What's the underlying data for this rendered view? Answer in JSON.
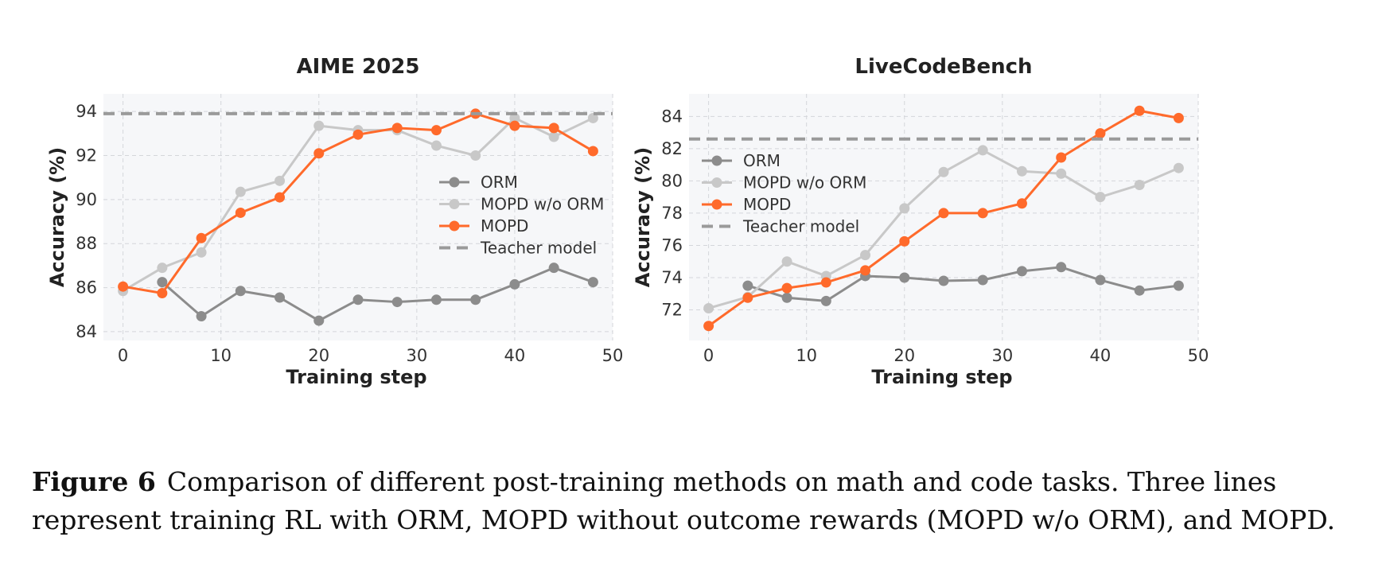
{
  "colors": {
    "ORM": "#8c8c8c",
    "MOPD w/o ORM": "#c8c8c8",
    "MOPD": "#ff6a2b",
    "teacher": "#9a9a9a",
    "plot_bg": "#f6f7f9",
    "grid": "#d4d6da"
  },
  "chart_data": [
    {
      "type": "line",
      "title": "AIME 2025",
      "xlabel": "Training step",
      "ylabel": "Accuracy (%)",
      "xlim": [
        -2,
        50
      ],
      "ylim": [
        83.6,
        94.8
      ],
      "xticks": [
        0,
        10,
        20,
        30,
        40,
        50
      ],
      "yticks": [
        84,
        86,
        88,
        90,
        92,
        94
      ],
      "grid": true,
      "legend_position": "center-right",
      "series": [
        {
          "name": "ORM",
          "x": [
            4,
            8,
            12,
            16,
            20,
            24,
            28,
            32,
            36,
            40,
            44,
            48
          ],
          "y": [
            86.25,
            84.7,
            85.85,
            85.55,
            84.5,
            85.45,
            85.35,
            85.45,
            85.45,
            86.15,
            86.9,
            86.25
          ]
        },
        {
          "name": "MOPD w/o ORM",
          "x": [
            0,
            4,
            8,
            12,
            16,
            20,
            24,
            28,
            32,
            36,
            40,
            44,
            48
          ],
          "y": [
            85.85,
            86.9,
            87.6,
            90.35,
            90.85,
            93.35,
            93.15,
            93.15,
            92.45,
            92.0,
            93.7,
            92.85,
            93.7
          ]
        },
        {
          "name": "MOPD",
          "x": [
            0,
            4,
            8,
            12,
            16,
            20,
            24,
            28,
            32,
            36,
            40,
            44,
            48
          ],
          "y": [
            86.05,
            85.75,
            88.25,
            89.4,
            90.1,
            92.1,
            92.95,
            93.25,
            93.15,
            93.9,
            93.35,
            93.25,
            92.2
          ]
        },
        {
          "name": "Teacher model",
          "type": "hline",
          "y": 93.9
        }
      ]
    },
    {
      "type": "line",
      "title": "LiveCodeBench",
      "xlabel": "Training step",
      "ylabel": "Accuracy (%)",
      "xlim": [
        -2,
        50
      ],
      "ylim": [
        70.1,
        85.4
      ],
      "xticks": [
        0,
        10,
        20,
        30,
        40,
        50
      ],
      "yticks": [
        72,
        74,
        76,
        78,
        80,
        82,
        84
      ],
      "grid": true,
      "legend_position": "top-left",
      "series": [
        {
          "name": "ORM",
          "x": [
            4,
            8,
            12,
            16,
            20,
            24,
            28,
            32,
            36,
            40,
            44,
            48
          ],
          "y": [
            73.5,
            72.75,
            72.55,
            74.1,
            74.0,
            73.8,
            73.85,
            74.4,
            74.65,
            73.85,
            73.2,
            73.5
          ]
        },
        {
          "name": "MOPD w/o ORM",
          "x": [
            0,
            4,
            8,
            12,
            16,
            20,
            24,
            28,
            32,
            36,
            40,
            44,
            48
          ],
          "y": [
            72.1,
            72.8,
            75.0,
            74.1,
            75.4,
            78.3,
            80.55,
            81.9,
            80.6,
            80.45,
            79.0,
            79.75,
            80.8
          ]
        },
        {
          "name": "MOPD",
          "x": [
            0,
            4,
            8,
            12,
            16,
            20,
            24,
            28,
            32,
            36,
            40,
            44,
            48
          ],
          "y": [
            71.0,
            72.75,
            73.35,
            73.7,
            74.45,
            76.25,
            78.0,
            78.0,
            78.6,
            81.45,
            82.95,
            84.35,
            83.9
          ]
        },
        {
          "name": "Teacher model",
          "type": "hline",
          "y": 82.6
        }
      ]
    }
  ],
  "caption": {
    "label": "Figure 6",
    "line1": "Comparison of different post-training methods on math and code tasks. Three lines",
    "line2": "represent training RL with ORM, MOPD without outcome rewards (MOPD w/o ORM), and MOPD."
  }
}
